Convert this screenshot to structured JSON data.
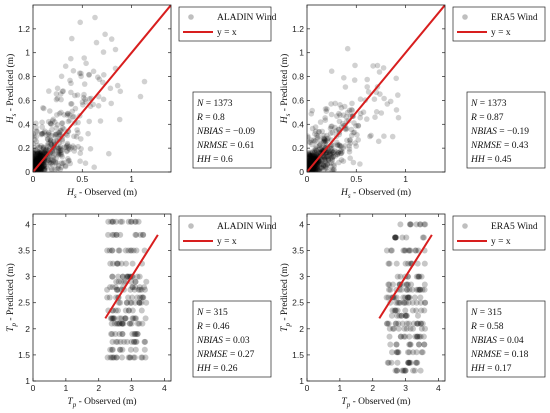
{
  "chart_data": [
    {
      "type": "scatter",
      "xlim": [
        0,
        1.4
      ],
      "ylim": [
        0,
        1.4
      ],
      "xticks": [
        "0",
        "0.5",
        "1"
      ],
      "yticks": [
        "0",
        "0.2",
        "0.4",
        "0.6",
        "0.8",
        "1",
        "1.2"
      ],
      "xtick_values": [
        0,
        0.5,
        1
      ],
      "ytick_values": [
        0,
        0.2,
        0.4,
        0.6,
        0.8,
        1,
        1.2
      ],
      "xlabel": {
        "var": "H",
        "sub": "s",
        "text": " - Observed (m)"
      },
      "ylabel": {
        "var": "H",
        "sub": "s",
        "text": " - Predicted (m)"
      },
      "series": [
        {
          "name": "ALADIN Wind",
          "marker_color": "#000000"
        },
        {
          "name": "y = x",
          "line_color": "#d81e1e",
          "points": [
            [
              0,
              0
            ],
            [
              1.4,
              1.4
            ]
          ]
        }
      ],
      "legend_position": "top-right",
      "stats": [
        {
          "name": "N",
          "value": "1373"
        },
        {
          "name": "R",
          "value": "0.8"
        },
        {
          "name": "NBIAS",
          "value": "−0.09"
        },
        {
          "name": "NRMSE",
          "value": "0.61"
        },
        {
          "name": "HH",
          "value": "0.6"
        }
      ],
      "clusters": [
        {
          "cx": 0.05,
          "cy": 0.07,
          "sx": 0.05,
          "sy": 0.06,
          "n": 220
        },
        {
          "cx": 0.18,
          "cy": 0.2,
          "sx": 0.1,
          "sy": 0.12,
          "n": 160
        },
        {
          "cx": 0.35,
          "cy": 0.38,
          "sx": 0.15,
          "sy": 0.2,
          "n": 90
        },
        {
          "cx": 0.65,
          "cy": 0.7,
          "sx": 0.25,
          "sy": 0.3,
          "n": 40
        }
      ]
    },
    {
      "type": "scatter",
      "xlim": [
        0,
        1.4
      ],
      "ylim": [
        0,
        1.4
      ],
      "xticks": [
        "0",
        "0.5",
        "1"
      ],
      "yticks": [
        "0",
        "0.2",
        "0.4",
        "0.6",
        "0.8",
        "1",
        "1.2"
      ],
      "xtick_values": [
        0,
        0.5,
        1
      ],
      "ytick_values": [
        0,
        0.2,
        0.4,
        0.6,
        0.8,
        1,
        1.2
      ],
      "xlabel": {
        "var": "H",
        "sub": "s",
        "text": " - Observed (m)"
      },
      "ylabel": {
        "var": "H",
        "sub": "s",
        "text": " - Predicted (m)"
      },
      "series": [
        {
          "name": "ERA5 Wind",
          "marker_color": "#000000"
        },
        {
          "name": "y = x",
          "line_color": "#d81e1e",
          "points": [
            [
              0,
              0
            ],
            [
              1.4,
              1.4
            ]
          ]
        }
      ],
      "legend_position": "top-right",
      "stats": [
        {
          "name": "N",
          "value": "1373"
        },
        {
          "name": "R",
          "value": "0.87"
        },
        {
          "name": "NBIAS",
          "value": "−0.19"
        },
        {
          "name": "NRMSE",
          "value": "0.43"
        },
        {
          "name": "HH",
          "value": "0.45"
        }
      ],
      "clusters": [
        {
          "cx": 0.05,
          "cy": 0.06,
          "sx": 0.04,
          "sy": 0.05,
          "n": 230
        },
        {
          "cx": 0.17,
          "cy": 0.16,
          "sx": 0.08,
          "sy": 0.09,
          "n": 170
        },
        {
          "cx": 0.35,
          "cy": 0.33,
          "sx": 0.13,
          "sy": 0.14,
          "n": 90
        },
        {
          "cx": 0.65,
          "cy": 0.62,
          "sx": 0.2,
          "sy": 0.2,
          "n": 40
        }
      ]
    },
    {
      "type": "scatter",
      "xlim": [
        0,
        4.2
      ],
      "ylim": [
        1,
        4.2
      ],
      "xticks": [
        "0",
        "1",
        "2",
        "3",
        "4"
      ],
      "yticks": [
        "1",
        "1.5",
        "2",
        "2.5",
        "3",
        "3.5",
        "4"
      ],
      "xtick_values": [
        0,
        1,
        2,
        3,
        4
      ],
      "ytick_values": [
        1,
        1.5,
        2,
        2.5,
        3,
        3.5,
        4
      ],
      "xlabel": {
        "var": "T",
        "sub": "p",
        "text": " - Observed (m)"
      },
      "ylabel": {
        "var": "T",
        "sub": "p",
        "text": " - Predicted (m)"
      },
      "series": [
        {
          "name": "ALADIN Wind",
          "marker_color": "#000000"
        },
        {
          "name": "y = x",
          "line_color": "#d81e1e",
          "points": [
            [
              2.2,
              2.2
            ],
            [
              3.8,
              3.8
            ]
          ]
        }
      ],
      "legend_position": "top-right",
      "stats": [
        {
          "name": "N",
          "value": "315"
        },
        {
          "name": "R",
          "value": "0.46"
        },
        {
          "name": "NBIAS",
          "value": "0.03"
        },
        {
          "name": "NRMSE",
          "value": "0.27"
        },
        {
          "name": "HH",
          "value": "0.26"
        }
      ],
      "band_levels": [
        4.05,
        3.8,
        3.5,
        3.25,
        3.0,
        2.9,
        2.8,
        2.75,
        2.6,
        2.5,
        2.35,
        2.2,
        2.1,
        1.9,
        1.75,
        1.6,
        1.45
      ],
      "band_x_range": [
        2.25,
        3.45
      ]
    },
    {
      "type": "scatter",
      "xlim": [
        0,
        4.2
      ],
      "ylim": [
        1,
        4.2
      ],
      "xticks": [
        "0",
        "1",
        "2",
        "3",
        "4"
      ],
      "yticks": [
        "1",
        "1.5",
        "2",
        "2.5",
        "3",
        "3.5",
        "4"
      ],
      "xtick_values": [
        0,
        1,
        2,
        3,
        4
      ],
      "ytick_values": [
        1,
        1.5,
        2,
        2.5,
        3,
        3.5,
        4
      ],
      "xlabel": {
        "var": "T",
        "sub": "p",
        "text": " - Observed (m)"
      },
      "ylabel": {
        "var": "T",
        "sub": "p",
        "text": " - Predicted (m)"
      },
      "series": [
        {
          "name": "ERA5 Wind",
          "marker_color": "#000000"
        },
        {
          "name": "y = x",
          "line_color": "#d81e1e",
          "points": [
            [
              2.2,
              2.2
            ],
            [
              3.8,
              3.8
            ]
          ]
        }
      ],
      "legend_position": "top-right",
      "stats": [
        {
          "name": "N",
          "value": "315"
        },
        {
          "name": "R",
          "value": "0.58"
        },
        {
          "name": "NBIAS",
          "value": "0.04"
        },
        {
          "name": "NRMSE",
          "value": "0.18"
        },
        {
          "name": "HH",
          "value": "0.17"
        }
      ],
      "band_levels": [
        4.0,
        3.75,
        3.5,
        3.25,
        3.0,
        2.85,
        2.75,
        2.6,
        2.5,
        2.35,
        2.25,
        2.1,
        2.0,
        1.85,
        1.7,
        1.55,
        1.35,
        1.2
      ],
      "band_x_range": [
        2.4,
        3.6
      ]
    }
  ]
}
